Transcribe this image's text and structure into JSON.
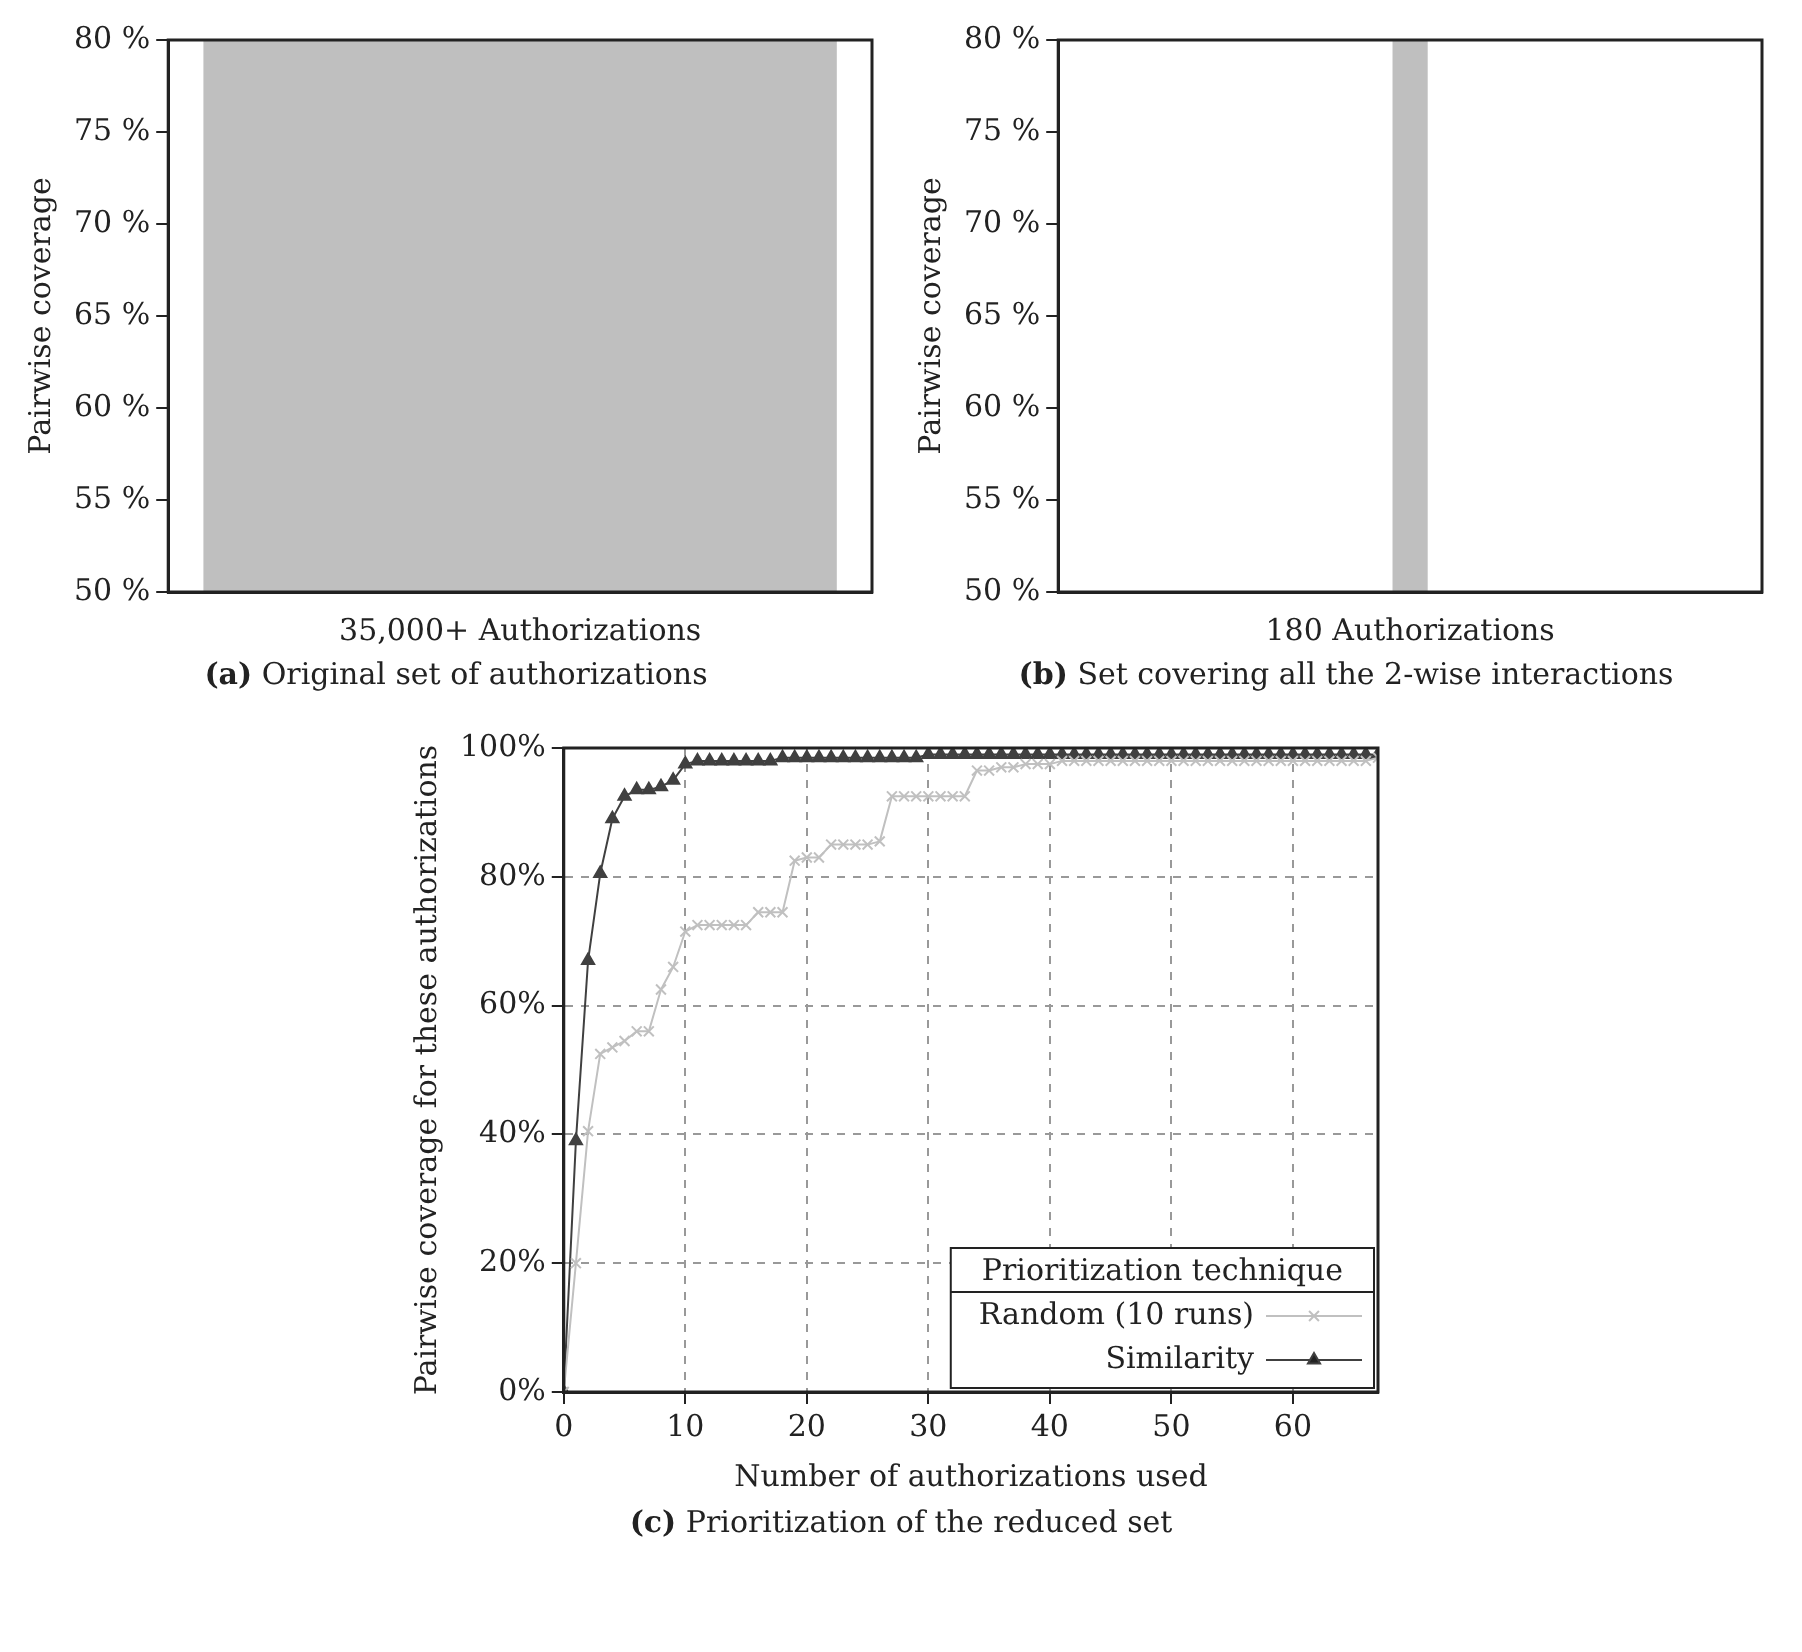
{
  "chart_data": [
    {
      "type": "bar",
      "title": "(a) Original set of authorizations",
      "ylabel": "Pairwise coverage",
      "categories": [
        "35,000+ Authorizations"
      ],
      "values": [
        80
      ],
      "color": "#bfbfbf",
      "ylim": [
        50,
        80
      ],
      "yticks": [
        {
          "value": 50,
          "label": "50 %"
        },
        {
          "value": 55,
          "label": "55 %"
        },
        {
          "value": 60,
          "label": "60 %"
        },
        {
          "value": 65,
          "label": "65 %"
        },
        {
          "value": 70,
          "label": "70 %"
        },
        {
          "value": 75,
          "label": "75 %"
        },
        {
          "value": 80,
          "label": "80 %"
        }
      ],
      "grid": false,
      "legend": false
    },
    {
      "type": "bar",
      "title": "(b) Set covering all the 2-wise interactions",
      "ylabel": "Pairwise coverage",
      "categories": [
        "180 Authorizations"
      ],
      "values": [
        80
      ],
      "color": "#bfbfbf",
      "ylim": [
        50,
        80
      ],
      "yticks": [
        {
          "value": 50,
          "label": "50 %"
        },
        {
          "value": 55,
          "label": "55 %"
        },
        {
          "value": 60,
          "label": "60 %"
        },
        {
          "value": 65,
          "label": "65 %"
        },
        {
          "value": 70,
          "label": "70 %"
        },
        {
          "value": 75,
          "label": "75 %"
        },
        {
          "value": 80,
          "label": "80 %"
        }
      ],
      "grid": false,
      "legend": false
    },
    {
      "type": "line",
      "title": "(c) Prioritization of the reduced set",
      "xlabel": "Number of authorizations used",
      "ylabel": "Pairwise coverage for these authorizations",
      "legend_title": "Prioritization technique",
      "legend": "bottom right",
      "grid": true,
      "line_style": "solid",
      "x": [
        0,
        1,
        2,
        3,
        4,
        5,
        6,
        7,
        8,
        9,
        10,
        11,
        12,
        13,
        14,
        15,
        16,
        17,
        18,
        19,
        20,
        21,
        22,
        23,
        24,
        25,
        26,
        27,
        28,
        29,
        30,
        31,
        32,
        33,
        34,
        35,
        36,
        37,
        38,
        39,
        40,
        41,
        42,
        43,
        44,
        45,
        46,
        47,
        48,
        49,
        50,
        51,
        52,
        53,
        54,
        55,
        56,
        57,
        58,
        59,
        60,
        61,
        62,
        63,
        64,
        65,
        66,
        67
      ],
      "xlim": [
        0,
        67
      ],
      "xticks": [
        0,
        10,
        20,
        30,
        40,
        50,
        60
      ],
      "ylim": [
        0,
        100
      ],
      "yticks": [
        {
          "value": 0,
          "label": "0%"
        },
        {
          "value": 20,
          "label": "20%"
        },
        {
          "value": 40,
          "label": "40%"
        },
        {
          "value": 60,
          "label": "60%"
        },
        {
          "value": 80,
          "label": "80%"
        },
        {
          "value": 100,
          "label": "100%"
        }
      ],
      "series": [
        {
          "name": "Random (10 runs)",
          "color": "#c0c0c0",
          "marker": "cross",
          "values": [
            0,
            20,
            40.5,
            52.5,
            53.5,
            54.5,
            56,
            56,
            62.5,
            66,
            71.5,
            72.5,
            72.5,
            72.5,
            72.5,
            72.5,
            74.5,
            74.5,
            74.5,
            82.5,
            83,
            83,
            85,
            85,
            85,
            85,
            85.5,
            92.5,
            92.5,
            92.5,
            92.5,
            92.5,
            92.5,
            92.5,
            96.5,
            96.5,
            97,
            97,
            97.5,
            97.5,
            97.5,
            98,
            98,
            98,
            98,
            98,
            98,
            98,
            98,
            98,
            98,
            98,
            98,
            98,
            98,
            98,
            98,
            98,
            98,
            98,
            98,
            98,
            98,
            98,
            98,
            98,
            98,
            98.5
          ]
        },
        {
          "name": "Similarity",
          "color": "#404040",
          "marker": "triangle",
          "values": [
            0,
            39,
            67,
            80.5,
            89,
            92.5,
            93.5,
            93.5,
            94,
            95,
            97.5,
            98,
            98,
            98,
            98,
            98,
            98,
            98,
            98.5,
            98.5,
            98.5,
            98.5,
            98.5,
            98.5,
            98.5,
            98.5,
            98.5,
            98.5,
            98.5,
            98.5,
            99,
            99,
            99,
            99,
            99,
            99,
            99,
            99,
            99,
            99,
            99,
            99,
            99,
            99,
            99,
            99,
            99,
            99,
            99,
            99,
            99,
            99,
            99,
            99,
            99,
            99,
            99,
            99,
            99,
            99,
            99,
            99,
            99,
            99,
            99,
            99,
            99,
            99
          ]
        }
      ]
    }
  ]
}
